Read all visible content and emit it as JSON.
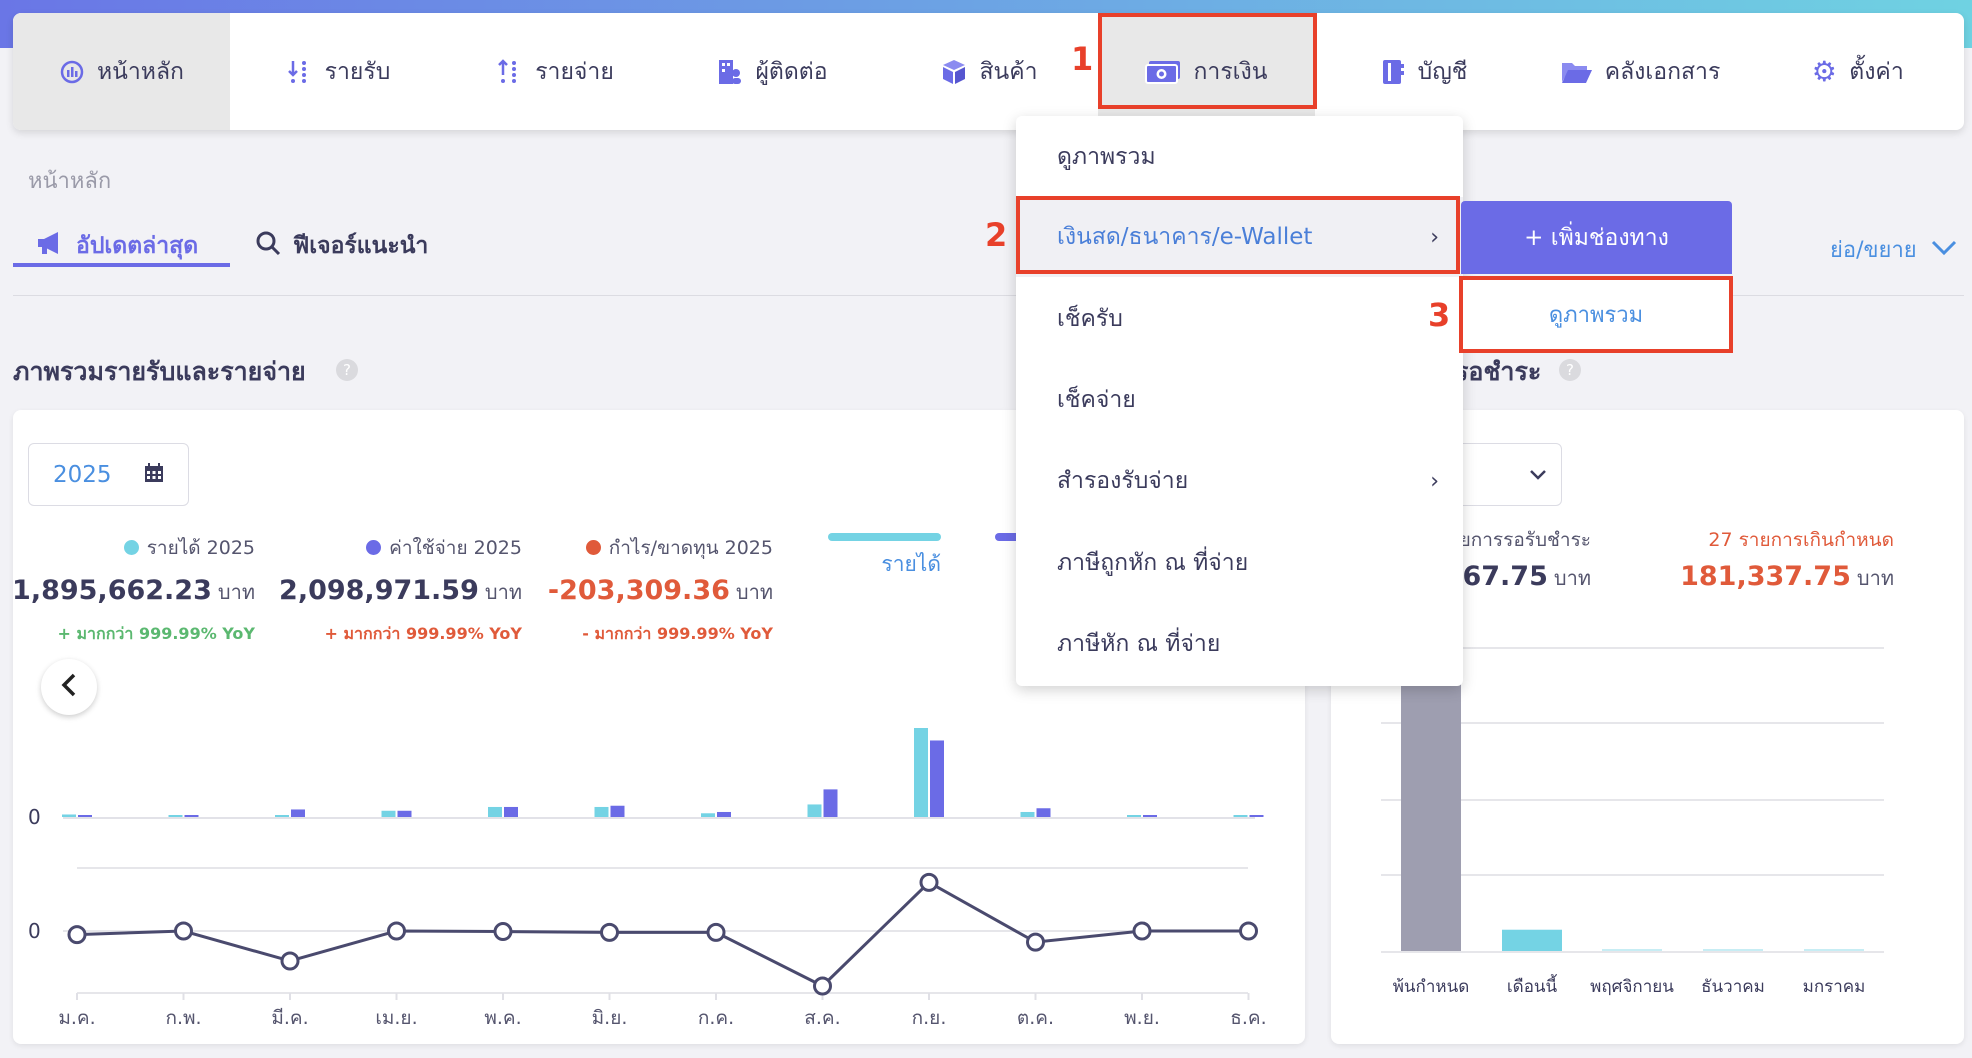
{
  "nav": {
    "items": [
      {
        "label": "หน้าหลัก",
        "icon": "chart-icon"
      },
      {
        "label": "รายรับ",
        "icon": "income-list-icon"
      },
      {
        "label": "รายจ่าย",
        "icon": "expense-list-icon"
      },
      {
        "label": "ผู้ติดต่อ",
        "icon": "contacts-icon"
      },
      {
        "label": "สินค้า",
        "icon": "box-icon"
      },
      {
        "label": "การเงิน",
        "icon": "money-icon"
      },
      {
        "label": "บัญชี",
        "icon": "ledger-icon"
      },
      {
        "label": "คลังเอกสาร",
        "icon": "folder-icon"
      },
      {
        "label": "ตั้งค่า",
        "icon": "gear-icon"
      }
    ]
  },
  "annotations": {
    "one": "1",
    "two": "2",
    "three": "3"
  },
  "breadcrumb": "หน้าหลัก",
  "tabs": [
    {
      "label": "อัปเดตล่าสุด",
      "icon": "megaphone-icon"
    },
    {
      "label": "ฟีเจอร์แนะนำ",
      "icon": "search-icon"
    }
  ],
  "collapse_label": "ย่อ/ขยาย",
  "overview": {
    "title": "ภาพรวมรายรับและรายจ่าย",
    "year": "2025",
    "stats": [
      {
        "label": "รายได้ 2025",
        "value": "1,895,662.23",
        "unit": "บาท",
        "yoy": "+ มากกว่า 999.99% YoY",
        "dot": "#74d3e4",
        "value_color": "#3b3b5c",
        "yoy_color": "#5bb870"
      },
      {
        "label": "ค่าใช้จ่าย 2025",
        "value": "2,098,971.59",
        "unit": "บาท",
        "yoy": "+ มากกว่า 999.99% YoY",
        "dot": "#6b6be6",
        "value_color": "#3b3b5c",
        "yoy_color": "#e05a3a"
      },
      {
        "label": "กำไร/ขาดทุน 2025",
        "value": "-203,309.36",
        "unit": "บาท",
        "yoy": "- มากกว่า 999.99% YoY",
        "dot": "#e05a3a",
        "value_color": "#e05a3a",
        "yoy_color": "#e05a3a"
      }
    ],
    "legend": [
      {
        "label": "รายได้",
        "color": "#74d3e4"
      },
      {
        "label": "",
        "color": "#6b6be6"
      }
    ]
  },
  "receivable": {
    "title": "รอชำระ",
    "pending_label": "รายการรอรับชำระ",
    "pending_value": "967.75",
    "overdue_label": "27 รายการเกินกำหนด",
    "overdue_value": "181,337.75",
    "unit": "บาท"
  },
  "menu": {
    "items": [
      {
        "label": "ดูภาพรวม",
        "submenu": false
      },
      {
        "label": "เงินสด/ธนาคาร/e-Wallet",
        "submenu": true
      },
      {
        "label": "เช็ครับ",
        "submenu": false
      },
      {
        "label": "เช็คจ่าย",
        "submenu": false
      },
      {
        "label": "สำรองรับจ่าย",
        "submenu": true
      },
      {
        "label": "ภาษีถูกหัก ณ ที่จ่าย",
        "submenu": false
      },
      {
        "label": "ภาษีหัก ณ ที่จ่าย",
        "submenu": false
      }
    ],
    "chevron": "›",
    "submenu": {
      "add_label": "+ เพิ่มช่องทาง",
      "overview_label": "ดูภาพรวม"
    }
  },
  "chart_data": [
    {
      "type": "bar",
      "categories": [
        "ม.ค.",
        "ก.พ.",
        "มี.ค.",
        "เม.ย.",
        "พ.ค.",
        "มิ.ย.",
        "ก.ค.",
        "ส.ค.",
        "ก.ย.",
        "ต.ค.",
        "พ.ย.",
        "ธ.ค."
      ],
      "series": [
        {
          "name": "รายได้",
          "color": "#74d3e4",
          "values": [
            33000,
            16500,
            16500,
            82000,
            132000,
            132000,
            49000,
            165000,
            1170000,
            66000,
            16500,
            16500
          ]
        },
        {
          "color": "#6b6be6",
          "values": [
            16500,
            16500,
            99000,
            82000,
            132000,
            148000,
            66000,
            363000,
            1006000,
            115000,
            16500,
            16500
          ]
        }
      ],
      "ytick_labels": [
        "0"
      ],
      "grid": true
    },
    {
      "type": "line",
      "categories": [
        "ม.ค.",
        "ก.พ.",
        "มี.ค.",
        "เม.ย.",
        "พ.ค.",
        "มิ.ย.",
        "ก.ค.",
        "ส.ค.",
        "ก.ย.",
        "ต.ค.",
        "พ.ย.",
        "ธ.ค."
      ],
      "values": [
        -13000,
        0,
        -108000,
        0,
        -2000,
        -5000,
        -5000,
        -198000,
        175000,
        -40000,
        0,
        0
      ],
      "color": "#4a4a6e",
      "ytick_labels": [
        "0"
      ],
      "grid": true
    },
    {
      "type": "bar",
      "categories": [
        "พ้นกำหนด",
        "เดือนนี้",
        "พฤศจิกายน",
        "ธันวาคม",
        "มกราคม"
      ],
      "values": [
        181337.75,
        14000,
        0,
        0,
        0
      ],
      "colors": [
        "#9e9eb0",
        "#74d3e4",
        "#74d3e4",
        "#74d3e4",
        "#74d3e4"
      ],
      "ylim": [
        0,
        200000
      ],
      "grid": true
    }
  ]
}
